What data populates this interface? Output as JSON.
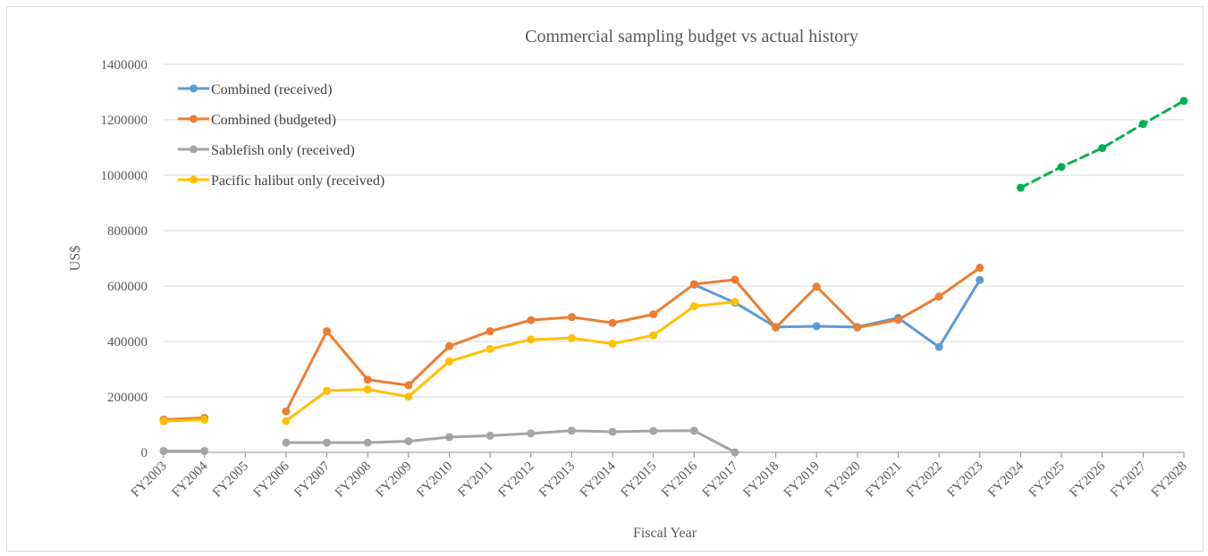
{
  "chart_data": {
    "type": "line",
    "title": "Commercial sampling budget vs actual history",
    "xlabel": "Fiscal Year",
    "ylabel": "US$",
    "ylim": [
      0,
      1400000
    ],
    "yticks": [
      0,
      200000,
      400000,
      600000,
      800000,
      1000000,
      1200000,
      1400000
    ],
    "grid": true,
    "legend_position": "top-left",
    "categories": [
      "FY2003",
      "FY2004",
      "FY2005",
      "FY2006",
      "FY2007",
      "FY2008",
      "FY2009",
      "FY2010",
      "FY2011",
      "FY2012",
      "FY2013",
      "FY2014",
      "FY2015",
      "FY2016",
      "FY2017",
      "FY2018",
      "FY2019",
      "FY2020",
      "FY2021",
      "FY2022",
      "FY2023",
      "FY2024",
      "FY2025",
      "FY2026",
      "FY2027",
      "FY2028"
    ],
    "series": [
      {
        "name": "Combined (received)",
        "color": "#5b9bd5",
        "dashed": false,
        "in_legend": true,
        "values": [
          null,
          null,
          null,
          null,
          null,
          null,
          null,
          null,
          null,
          null,
          null,
          null,
          null,
          605000,
          540000,
          452000,
          455000,
          452000,
          485000,
          380000,
          622000,
          null,
          null,
          null,
          null,
          null
        ]
      },
      {
        "name": "Combined (budgeted)",
        "color": "#ed7d31",
        "dashed": false,
        "in_legend": true,
        "values": [
          118000,
          124000,
          null,
          148000,
          437000,
          262000,
          242000,
          383000,
          437000,
          477000,
          488000,
          467000,
          498000,
          607000,
          623000,
          450000,
          598000,
          450000,
          478000,
          562000,
          666000,
          null,
          null,
          null,
          null,
          null
        ]
      },
      {
        "name": "Sablefish only (received)",
        "color": "#a5a5a5",
        "dashed": false,
        "in_legend": true,
        "values": [
          5000,
          5000,
          null,
          35000,
          35000,
          35000,
          40000,
          55000,
          60000,
          68000,
          78000,
          74000,
          77000,
          78000,
          0,
          null,
          null,
          null,
          null,
          null,
          null,
          null,
          null,
          null,
          null,
          null
        ]
      },
      {
        "name": "Pacific halibut only (received)",
        "color": "#ffc000",
        "dashed": false,
        "in_legend": true,
        "values": [
          112000,
          118000,
          null,
          113000,
          222000,
          227000,
          201000,
          328000,
          373000,
          407000,
          412000,
          392000,
          422000,
          527000,
          543000,
          null,
          null,
          null,
          null,
          null,
          null,
          null,
          null,
          null,
          null,
          null
        ]
      },
      {
        "color": "#00b050",
        "dashed": true,
        "in_legend": false,
        "values": [
          null,
          null,
          null,
          null,
          null,
          null,
          null,
          null,
          null,
          null,
          null,
          null,
          null,
          null,
          null,
          null,
          null,
          null,
          null,
          null,
          null,
          955000,
          1030000,
          1098000,
          1185000,
          1268000
        ]
      }
    ]
  }
}
